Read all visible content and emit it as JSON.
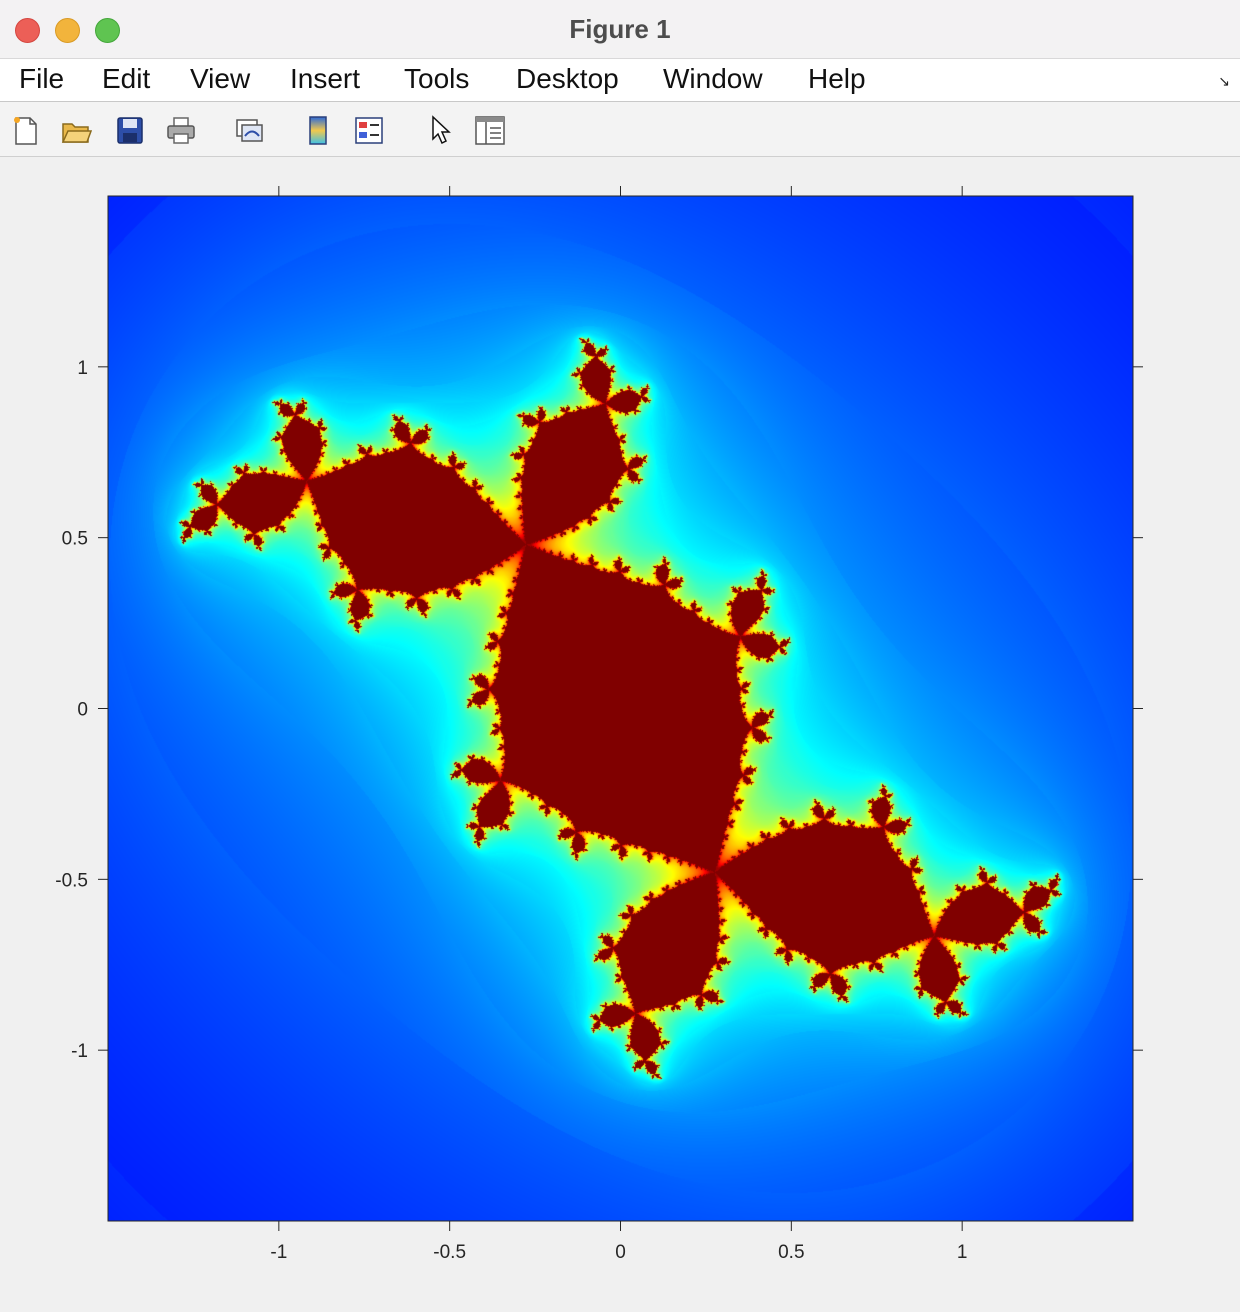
{
  "window": {
    "title": "Figure 1"
  },
  "menu": [
    "File",
    "Edit",
    "View",
    "Insert",
    "Tools",
    "Desktop",
    "Window",
    "Help"
  ],
  "toolbar": [
    "new-figure-icon",
    "open-file-icon",
    "save-icon",
    "print-icon",
    "link-plot-icon",
    "insert-colorbar-icon",
    "insert-legend-icon",
    "edit-plot-arrow-icon",
    "property-inspector-icon"
  ],
  "chart_data": {
    "type": "heatmap",
    "title": "",
    "xlabel": "",
    "ylabel": "",
    "xlim": [
      -1.5,
      1.5
    ],
    "ylim": [
      -1.5,
      1.5
    ],
    "x_ticks": [
      -1,
      -0.5,
      0,
      0.5,
      1
    ],
    "x_tick_labels": [
      "-1",
      "-0.5",
      "0",
      "0.5",
      "1"
    ],
    "y_ticks": [
      -1,
      -0.5,
      0,
      0.5,
      1
    ],
    "y_tick_labels": [
      "-1",
      "-0.5",
      "0",
      "0.5",
      "1"
    ],
    "colormap": "jet",
    "background_color": "#00008f",
    "grid": false,
    "description_fn": "julia_set",
    "julia_c": {
      "re": -0.123,
      "im": 0.745
    },
    "max_iter": 200,
    "colors": {
      "low": "#00008f",
      "mid": "#00ffff",
      "high": "#800000"
    }
  }
}
